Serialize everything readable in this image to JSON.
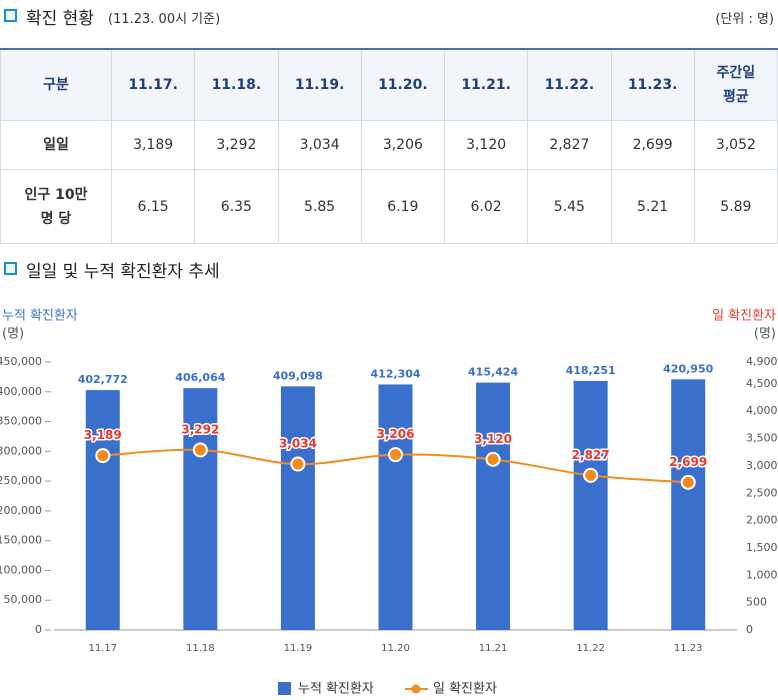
{
  "header": {
    "title": "확진 현황",
    "subtitle": "(11.23. 00시 기준)",
    "unit": "(단위 : 명)"
  },
  "table": {
    "columns": [
      "구분",
      "11.17.",
      "11.18.",
      "11.19.",
      "11.20.",
      "11.21.",
      "11.22.",
      "11.23.",
      "주간일\n평균"
    ],
    "rows": [
      [
        "일일",
        "3,189",
        "3,292",
        "3,034",
        "3,206",
        "3,120",
        "2,827",
        "2,699",
        "3,052"
      ],
      [
        "인구 10만\n명 당",
        "6.15",
        "6.35",
        "5.85",
        "6.19",
        "6.02",
        "5.45",
        "5.21",
        "5.89"
      ]
    ]
  },
  "chart_data": {
    "type": "bar-line",
    "title": "일일 및 누적 확진환자 추세",
    "ylabel": "누적 확진환자",
    "ylabel_unit": "(명)",
    "y2label": "일 확진환자",
    "y2label_unit": "(명)",
    "categories": [
      "11.17",
      "11.18",
      "11.19",
      "11.20",
      "11.21",
      "11.22",
      "11.23"
    ],
    "series": [
      {
        "name": "누적 확진환자",
        "type": "bar",
        "color": "#3a70cc",
        "values": [
          402772,
          406064,
          409098,
          412304,
          415424,
          418251,
          420950
        ],
        "value_labels": [
          "402,772",
          "406,064",
          "409,098",
          "412,304",
          "415,424",
          "418,251",
          "420,950"
        ]
      },
      {
        "name": "일 확진환자",
        "type": "line",
        "axis": "y2",
        "color": "#f28c1e",
        "label_color": "#e8392b",
        "values": [
          3189,
          3292,
          3034,
          3206,
          3120,
          2827,
          2699
        ],
        "value_labels": [
          "3,189",
          "3,292",
          "3,034",
          "3,206",
          "3,120",
          "2,827",
          "2,699"
        ]
      }
    ],
    "ylim": [
      0,
      450000
    ],
    "yticks": [
      0,
      {
        "value": 50000,
        "label": "50,000"
      },
      {
        "value": 100000,
        "label": "100,000"
      },
      {
        "value": 150000,
        "label": "150,000"
      },
      {
        "value": 200000,
        "label": "200,000"
      },
      {
        "value": 250000,
        "label": "250,000"
      },
      {
        "value": 300000,
        "label": "300,000"
      },
      {
        "value": 350000,
        "label": "350,000"
      },
      {
        "value": 400000,
        "label": "400,000"
      },
      {
        "value": 450000,
        "label": "450,000"
      }
    ],
    "y2lim": [
      0,
      4900
    ],
    "y2ticks": [
      0,
      500,
      {
        "value": 1000,
        "label": "1,000"
      },
      {
        "value": 1500,
        "label": "1,500"
      },
      {
        "value": 2000,
        "label": "2,000"
      },
      {
        "value": 2500,
        "label": "2,500"
      },
      {
        "value": 3000,
        "label": "3,000"
      },
      {
        "value": 3500,
        "label": "3,500"
      },
      {
        "value": 4000,
        "label": "4,000"
      },
      {
        "value": 4500,
        "label": "4,500"
      },
      {
        "value": 4900,
        "label": "4,900"
      }
    ],
    "grid": false,
    "legend": "bottom"
  }
}
